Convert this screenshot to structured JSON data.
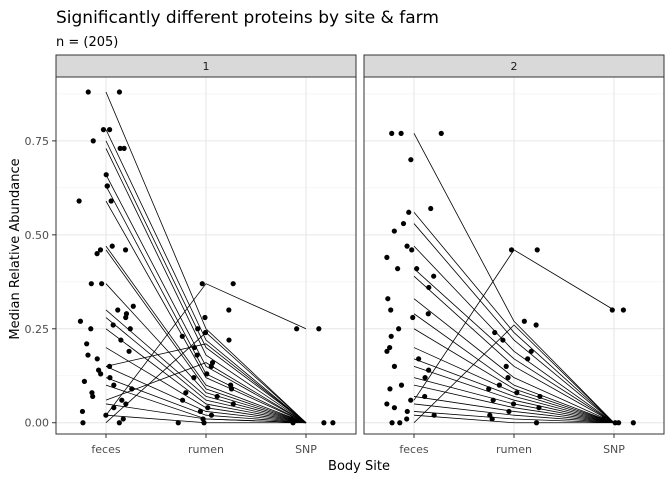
{
  "chart_data": {
    "type": "scatter",
    "title": "Significantly different proteins by site & farm",
    "subtitle": "n = (205)",
    "xlabel": "Body Site",
    "ylabel": "Median Relative Abundance",
    "categories": [
      "feces",
      "rumen",
      "SNP"
    ],
    "y_ticks": [
      "0.00",
      "0.25",
      "0.50",
      "0.75"
    ],
    "y_tick_values": [
      0,
      0.25,
      0.5,
      0.75
    ],
    "ylim": [
      -0.03,
      0.92
    ],
    "grid": true,
    "facets": [
      {
        "label": "1",
        "points": [
          {
            "x": "feces",
            "y": 0.88
          },
          {
            "x": "feces",
            "y": 0.88
          },
          {
            "x": "feces",
            "y": 0.78
          },
          {
            "x": "feces",
            "y": 0.78
          },
          {
            "x": "feces",
            "y": 0.75
          },
          {
            "x": "feces",
            "y": 0.73
          },
          {
            "x": "feces",
            "y": 0.73
          },
          {
            "x": "feces",
            "y": 0.66
          },
          {
            "x": "feces",
            "y": 0.63
          },
          {
            "x": "feces",
            "y": 0.63
          },
          {
            "x": "feces",
            "y": 0.59
          },
          {
            "x": "feces",
            "y": 0.59
          },
          {
            "x": "feces",
            "y": 0.47
          },
          {
            "x": "feces",
            "y": 0.46
          },
          {
            "x": "feces",
            "y": 0.46
          },
          {
            "x": "feces",
            "y": 0.45
          },
          {
            "x": "feces",
            "y": 0.37
          },
          {
            "x": "feces",
            "y": 0.37
          },
          {
            "x": "feces",
            "y": 0.31
          },
          {
            "x": "feces",
            "y": 0.3
          },
          {
            "x": "feces",
            "y": 0.29
          },
          {
            "x": "feces",
            "y": 0.28
          },
          {
            "x": "feces",
            "y": 0.27
          },
          {
            "x": "feces",
            "y": 0.26
          },
          {
            "x": "feces",
            "y": 0.25
          },
          {
            "x": "feces",
            "y": 0.25
          },
          {
            "x": "feces",
            "y": 0.22
          },
          {
            "x": "feces",
            "y": 0.21
          },
          {
            "x": "feces",
            "y": 0.19
          },
          {
            "x": "feces",
            "y": 0.18
          },
          {
            "x": "feces",
            "y": 0.17
          },
          {
            "x": "feces",
            "y": 0.15
          },
          {
            "x": "feces",
            "y": 0.14
          },
          {
            "x": "feces",
            "y": 0.13
          },
          {
            "x": "feces",
            "y": 0.12
          },
          {
            "x": "feces",
            "y": 0.11
          },
          {
            "x": "feces",
            "y": 0.1
          },
          {
            "x": "feces",
            "y": 0.09
          },
          {
            "x": "feces",
            "y": 0.08
          },
          {
            "x": "feces",
            "y": 0.07
          },
          {
            "x": "feces",
            "y": 0.06
          },
          {
            "x": "feces",
            "y": 0.05
          },
          {
            "x": "feces",
            "y": 0.04
          },
          {
            "x": "feces",
            "y": 0.03
          },
          {
            "x": "feces",
            "y": 0.02
          },
          {
            "x": "feces",
            "y": 0.01
          },
          {
            "x": "feces",
            "y": 0.0
          },
          {
            "x": "feces",
            "y": 0.0
          },
          {
            "x": "rumen",
            "y": 0.37
          },
          {
            "x": "rumen",
            "y": 0.37
          },
          {
            "x": "rumen",
            "y": 0.3
          },
          {
            "x": "rumen",
            "y": 0.28
          },
          {
            "x": "rumen",
            "y": 0.25
          },
          {
            "x": "rumen",
            "y": 0.24
          },
          {
            "x": "rumen",
            "y": 0.23
          },
          {
            "x": "rumen",
            "y": 0.22
          },
          {
            "x": "rumen",
            "y": 0.2
          },
          {
            "x": "rumen",
            "y": 0.18
          },
          {
            "x": "rumen",
            "y": 0.16
          },
          {
            "x": "rumen",
            "y": 0.15
          },
          {
            "x": "rumen",
            "y": 0.13
          },
          {
            "x": "rumen",
            "y": 0.12
          },
          {
            "x": "rumen",
            "y": 0.1
          },
          {
            "x": "rumen",
            "y": 0.09
          },
          {
            "x": "rumen",
            "y": 0.08
          },
          {
            "x": "rumen",
            "y": 0.07
          },
          {
            "x": "rumen",
            "y": 0.06
          },
          {
            "x": "rumen",
            "y": 0.05
          },
          {
            "x": "rumen",
            "y": 0.04
          },
          {
            "x": "rumen",
            "y": 0.03
          },
          {
            "x": "rumen",
            "y": 0.02
          },
          {
            "x": "rumen",
            "y": 0.01
          },
          {
            "x": "rumen",
            "y": 0.0
          },
          {
            "x": "rumen",
            "y": 0.0
          },
          {
            "x": "SNP",
            "y": 0.25
          },
          {
            "x": "SNP",
            "y": 0.25
          },
          {
            "x": "SNP",
            "y": 0.01
          },
          {
            "x": "SNP",
            "y": 0.0
          },
          {
            "x": "SNP",
            "y": 0.0
          },
          {
            "x": "SNP",
            "y": 0.0
          }
        ],
        "lines": [
          [
            0.88,
            0.25,
            0.0
          ],
          [
            0.78,
            0.22,
            0.0
          ],
          [
            0.75,
            0.2,
            0.0
          ],
          [
            0.73,
            0.18,
            0.0
          ],
          [
            0.66,
            0.15,
            0.0
          ],
          [
            0.63,
            0.13,
            0.0
          ],
          [
            0.59,
            0.12,
            0.0
          ],
          [
            0.47,
            0.1,
            0.0
          ],
          [
            0.46,
            0.09,
            0.0
          ],
          [
            0.37,
            0.08,
            0.0
          ],
          [
            0.3,
            0.07,
            0.0
          ],
          [
            0.28,
            0.06,
            0.0
          ],
          [
            0.25,
            0.05,
            0.0
          ],
          [
            0.2,
            0.04,
            0.0
          ],
          [
            0.15,
            0.03,
            0.0
          ],
          [
            0.12,
            0.02,
            0.0
          ],
          [
            0.1,
            0.01,
            0.0
          ],
          [
            0.05,
            0.01,
            0.0
          ],
          [
            0.02,
            0.0,
            0.0
          ],
          [
            0.02,
            0.37,
            0.25
          ],
          [
            0.15,
            0.21,
            0.0
          ],
          [
            0.0,
            0.24,
            0.0
          ],
          [
            0.06,
            0.16,
            0.0
          ]
        ]
      },
      {
        "label": "2",
        "points": [
          {
            "x": "feces",
            "y": 0.77
          },
          {
            "x": "feces",
            "y": 0.77
          },
          {
            "x": "feces",
            "y": 0.77
          },
          {
            "x": "feces",
            "y": 0.7
          },
          {
            "x": "feces",
            "y": 0.57
          },
          {
            "x": "feces",
            "y": 0.56
          },
          {
            "x": "feces",
            "y": 0.53
          },
          {
            "x": "feces",
            "y": 0.51
          },
          {
            "x": "feces",
            "y": 0.47
          },
          {
            "x": "feces",
            "y": 0.46
          },
          {
            "x": "feces",
            "y": 0.44
          },
          {
            "x": "feces",
            "y": 0.41
          },
          {
            "x": "feces",
            "y": 0.41
          },
          {
            "x": "feces",
            "y": 0.39
          },
          {
            "x": "feces",
            "y": 0.36
          },
          {
            "x": "feces",
            "y": 0.33
          },
          {
            "x": "feces",
            "y": 0.3
          },
          {
            "x": "feces",
            "y": 0.29
          },
          {
            "x": "feces",
            "y": 0.28
          },
          {
            "x": "feces",
            "y": 0.25
          },
          {
            "x": "feces",
            "y": 0.23
          },
          {
            "x": "feces",
            "y": 0.2
          },
          {
            "x": "feces",
            "y": 0.19
          },
          {
            "x": "feces",
            "y": 0.17
          },
          {
            "x": "feces",
            "y": 0.15
          },
          {
            "x": "feces",
            "y": 0.14
          },
          {
            "x": "feces",
            "y": 0.12
          },
          {
            "x": "feces",
            "y": 0.1
          },
          {
            "x": "feces",
            "y": 0.09
          },
          {
            "x": "feces",
            "y": 0.07
          },
          {
            "x": "feces",
            "y": 0.06
          },
          {
            "x": "feces",
            "y": 0.05
          },
          {
            "x": "feces",
            "y": 0.04
          },
          {
            "x": "feces",
            "y": 0.03
          },
          {
            "x": "feces",
            "y": 0.02
          },
          {
            "x": "feces",
            "y": 0.01
          },
          {
            "x": "feces",
            "y": 0.0
          },
          {
            "x": "feces",
            "y": 0.0
          },
          {
            "x": "rumen",
            "y": 0.46
          },
          {
            "x": "rumen",
            "y": 0.46
          },
          {
            "x": "rumen",
            "y": 0.27
          },
          {
            "x": "rumen",
            "y": 0.26
          },
          {
            "x": "rumen",
            "y": 0.24
          },
          {
            "x": "rumen",
            "y": 0.22
          },
          {
            "x": "rumen",
            "y": 0.19
          },
          {
            "x": "rumen",
            "y": 0.17
          },
          {
            "x": "rumen",
            "y": 0.15
          },
          {
            "x": "rumen",
            "y": 0.12
          },
          {
            "x": "rumen",
            "y": 0.1
          },
          {
            "x": "rumen",
            "y": 0.09
          },
          {
            "x": "rumen",
            "y": 0.08
          },
          {
            "x": "rumen",
            "y": 0.07
          },
          {
            "x": "rumen",
            "y": 0.06
          },
          {
            "x": "rumen",
            "y": 0.05
          },
          {
            "x": "rumen",
            "y": 0.04
          },
          {
            "x": "rumen",
            "y": 0.03
          },
          {
            "x": "rumen",
            "y": 0.02
          },
          {
            "x": "rumen",
            "y": 0.01
          },
          {
            "x": "rumen",
            "y": 0.0
          },
          {
            "x": "SNP",
            "y": 0.3
          },
          {
            "x": "SNP",
            "y": 0.3
          },
          {
            "x": "SNP",
            "y": 0.01
          },
          {
            "x": "SNP",
            "y": 0.0
          },
          {
            "x": "SNP",
            "y": 0.0
          },
          {
            "x": "SNP",
            "y": 0.0
          }
        ],
        "lines": [
          [
            0.77,
            0.27,
            0.0
          ],
          [
            0.56,
            0.24,
            0.0
          ],
          [
            0.53,
            0.22,
            0.0
          ],
          [
            0.47,
            0.19,
            0.0
          ],
          [
            0.41,
            0.17,
            0.0
          ],
          [
            0.39,
            0.15,
            0.0
          ],
          [
            0.33,
            0.12,
            0.0
          ],
          [
            0.29,
            0.1,
            0.0
          ],
          [
            0.25,
            0.09,
            0.0
          ],
          [
            0.2,
            0.08,
            0.0
          ],
          [
            0.17,
            0.07,
            0.0
          ],
          [
            0.15,
            0.06,
            0.0
          ],
          [
            0.12,
            0.05,
            0.0
          ],
          [
            0.1,
            0.04,
            0.0
          ],
          [
            0.07,
            0.03,
            0.0
          ],
          [
            0.05,
            0.02,
            0.0
          ],
          [
            0.03,
            0.01,
            0.0
          ],
          [
            0.02,
            0.0,
            0.0
          ],
          [
            0.06,
            0.46,
            0.3
          ],
          [
            0.0,
            0.26,
            0.0
          ]
        ]
      }
    ]
  }
}
